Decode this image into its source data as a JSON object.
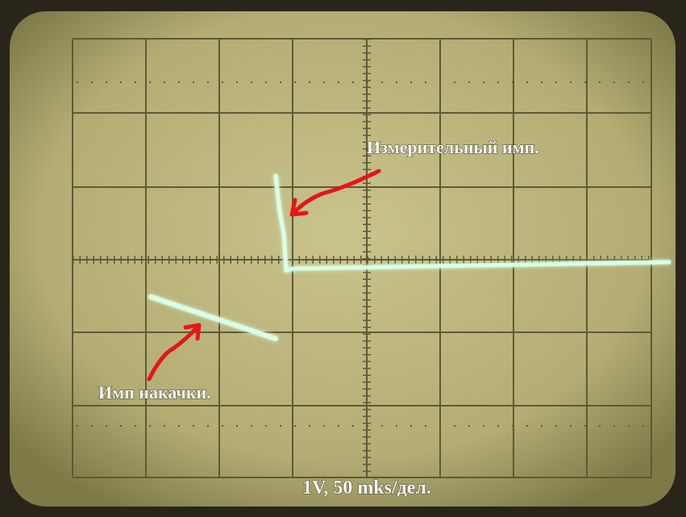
{
  "annotations": {
    "measuring_pulse": "Измерительный имп.",
    "pump_pulse": "Имп накачки.",
    "scale": "1V, 50 mks/дел."
  }
}
